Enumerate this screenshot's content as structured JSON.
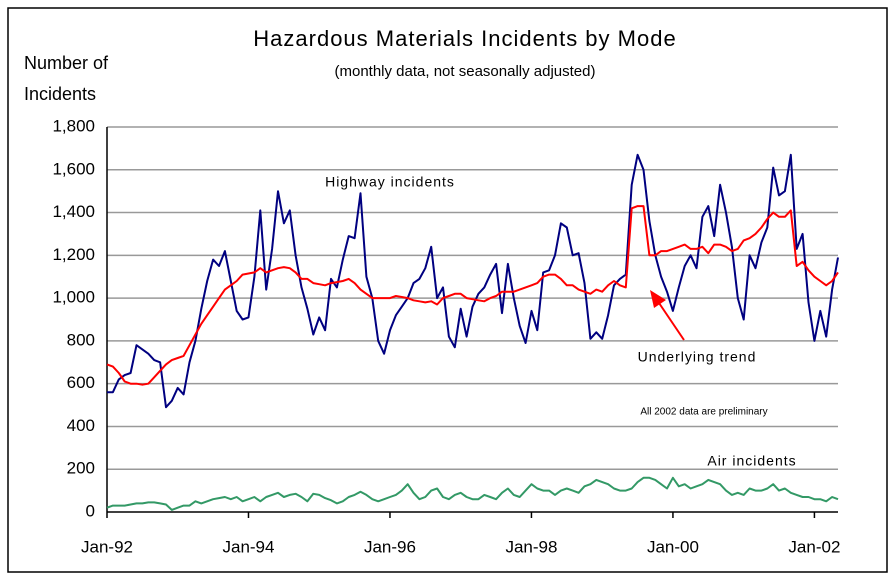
{
  "chart_data": {
    "type": "line",
    "title": "Hazardous Materials Incidents by Mode",
    "subtitle": "(monthly data, not seasonally adjusted)",
    "y_label": [
      "Number of",
      "Incidents"
    ],
    "categories": [
      "Jan-92",
      null,
      null,
      null,
      null,
      null,
      null,
      null,
      null,
      null,
      null,
      null,
      null,
      null,
      null,
      null,
      null,
      null,
      null,
      null,
      null,
      null,
      null,
      null,
      "Jan-94",
      null,
      null,
      null,
      null,
      null,
      null,
      null,
      null,
      null,
      null,
      null,
      null,
      null,
      null,
      null,
      null,
      null,
      null,
      null,
      null,
      null,
      null,
      null,
      "Jan-96",
      null,
      null,
      null,
      null,
      null,
      null,
      null,
      null,
      null,
      null,
      null,
      null,
      null,
      null,
      null,
      null,
      null,
      null,
      null,
      null,
      null,
      null,
      null,
      "Jan-98",
      null,
      null,
      null,
      null,
      null,
      null,
      null,
      null,
      null,
      null,
      null,
      null,
      null,
      null,
      null,
      null,
      null,
      null,
      null,
      null,
      null,
      null,
      null,
      "Jan-00",
      null,
      null,
      null,
      null,
      null,
      null,
      null,
      null,
      null,
      null,
      null,
      null,
      null,
      null,
      null,
      null,
      null,
      null,
      null,
      null,
      null,
      null,
      null,
      "Jan-02",
      null,
      null,
      null,
      null
    ],
    "series": [
      {
        "name": "Highway incidents",
        "color": "#000080",
        "values": [
          560,
          560,
          620,
          640,
          650,
          780,
          760,
          740,
          710,
          700,
          490,
          520,
          580,
          550,
          700,
          800,
          950,
          1080,
          1180,
          1150,
          1220,
          1080,
          940,
          900,
          910,
          1100,
          1410,
          1040,
          1230,
          1500,
          1350,
          1410,
          1200,
          1050,
          950,
          830,
          910,
          850,
          1090,
          1050,
          1180,
          1290,
          1280,
          1490,
          1100,
          1000,
          800,
          740,
          850,
          920,
          960,
          1000,
          1070,
          1090,
          1140,
          1240,
          1000,
          1050,
          820,
          770,
          950,
          820,
          960,
          1020,
          1050,
          1110,
          1160,
          930,
          1160,
          1000,
          870,
          790,
          940,
          850,
          1120,
          1130,
          1200,
          1350,
          1330,
          1200,
          1210,
          1070,
          810,
          840,
          810,
          920,
          1060,
          1090,
          1110,
          1530,
          1670,
          1600,
          1360,
          1200,
          1100,
          1030,
          940,
          1050,
          1150,
          1200,
          1140,
          1380,
          1430,
          1290,
          1530,
          1400,
          1240,
          1000,
          900,
          1200,
          1140,
          1260,
          1330,
          1610,
          1480,
          1500,
          1670,
          1230,
          1300,
          980,
          800,
          940,
          820,
          1040,
          1190
        ]
      },
      {
        "name": "Underlying trend",
        "color": "#ff0000",
        "values": [
          690,
          680,
          650,
          610,
          600,
          600,
          595,
          600,
          630,
          660,
          690,
          710,
          720,
          730,
          780,
          830,
          880,
          920,
          960,
          1000,
          1040,
          1060,
          1080,
          1110,
          1115,
          1120,
          1140,
          1120,
          1130,
          1140,
          1145,
          1140,
          1120,
          1090,
          1090,
          1070,
          1065,
          1060,
          1070,
          1075,
          1080,
          1090,
          1070,
          1040,
          1020,
          1000,
          1000,
          1000,
          1000,
          1010,
          1005,
          1000,
          990,
          985,
          980,
          985,
          970,
          1000,
          1010,
          1020,
          1020,
          1000,
          995,
          990,
          985,
          1000,
          1010,
          1030,
          1030,
          1030,
          1040,
          1050,
          1060,
          1070,
          1100,
          1110,
          1110,
          1090,
          1060,
          1060,
          1040,
          1030,
          1020,
          1040,
          1030,
          1060,
          1080,
          1060,
          1050,
          1420,
          1430,
          1430,
          1200,
          1200,
          1220,
          1220,
          1230,
          1240,
          1250,
          1230,
          1230,
          1240,
          1210,
          1250,
          1250,
          1240,
          1220,
          1230,
          1270,
          1280,
          1300,
          1330,
          1370,
          1400,
          1380,
          1380,
          1410,
          1150,
          1170,
          1130,
          1100,
          1080,
          1060,
          1080,
          1120
        ]
      },
      {
        "name": "Air incidents",
        "color": "#339966",
        "values": [
          20,
          30,
          30,
          30,
          35,
          40,
          40,
          45,
          45,
          40,
          35,
          10,
          20,
          30,
          30,
          50,
          40,
          50,
          60,
          65,
          70,
          60,
          70,
          50,
          60,
          70,
          50,
          70,
          80,
          90,
          70,
          80,
          85,
          70,
          50,
          85,
          80,
          65,
          55,
          40,
          50,
          70,
          80,
          95,
          80,
          60,
          50,
          60,
          70,
          80,
          100,
          130,
          90,
          60,
          70,
          100,
          110,
          70,
          60,
          80,
          90,
          70,
          60,
          60,
          80,
          70,
          60,
          90,
          110,
          80,
          70,
          100,
          130,
          110,
          100,
          100,
          80,
          100,
          110,
          100,
          90,
          120,
          130,
          150,
          140,
          130,
          110,
          100,
          100,
          110,
          140,
          160,
          160,
          150,
          130,
          110,
          160,
          120,
          130,
          110,
          120,
          130,
          150,
          140,
          130,
          100,
          80,
          90,
          80,
          110,
          100,
          100,
          110,
          130,
          100,
          110,
          90,
          80,
          70,
          70,
          60,
          60,
          50,
          70,
          60
        ]
      }
    ],
    "annotations": [
      {
        "text": "All 2002 data are preliminary",
        "color": "#000000"
      }
    ],
    "ylim": [
      0,
      1800
    ],
    "yticks": [
      0,
      200,
      400,
      600,
      800,
      {
        "value": 1000,
        "label": "1,000"
      },
      {
        "value": 1200,
        "label": "1,200"
      },
      {
        "value": 1400,
        "label": "1,400"
      },
      {
        "value": 1600,
        "label": "1,600"
      },
      {
        "value": 1800,
        "label": "1,800"
      }
    ],
    "grid": true
  }
}
